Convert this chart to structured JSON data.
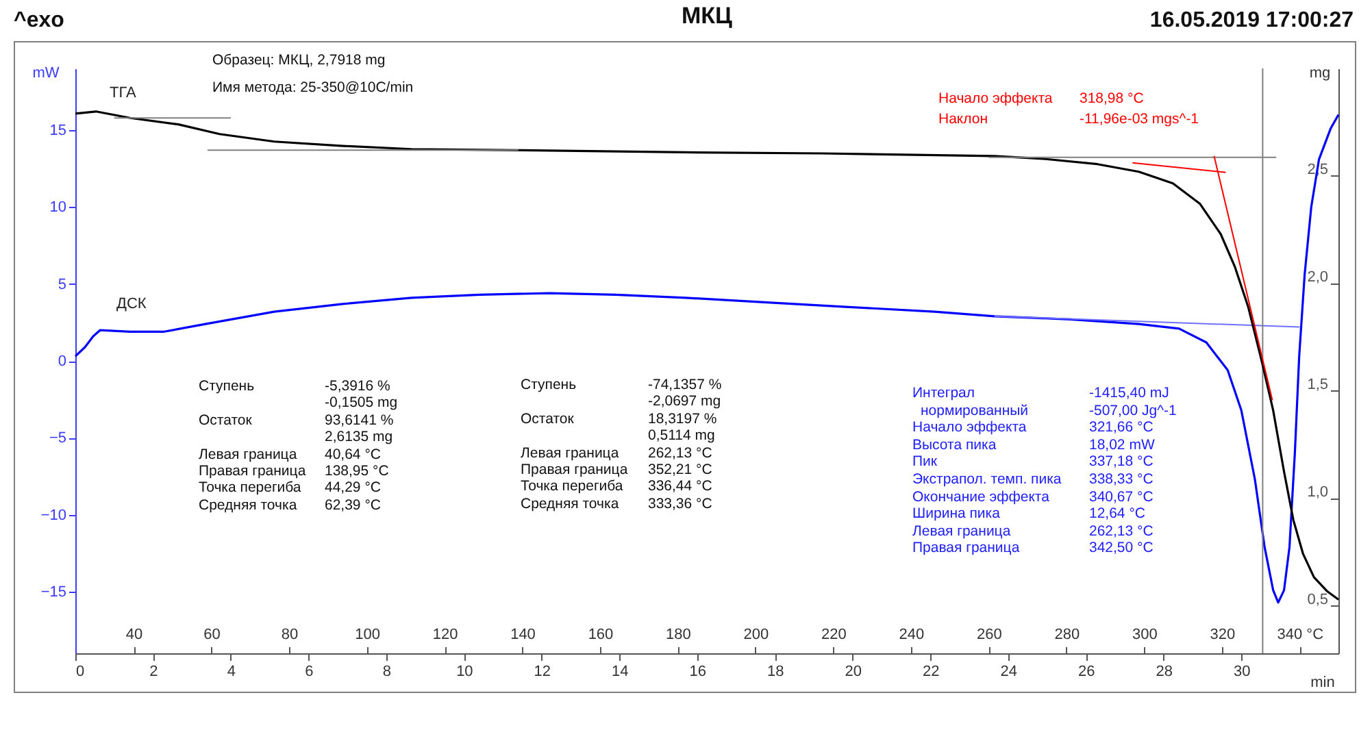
{
  "chart_data": {
    "type": "line",
    "title": "МКЦ",
    "xlabel": "min",
    "ylabel": "mW",
    "y2label": "mg",
    "xlim": [
      0,
      32.5
    ],
    "xticks": [
      0,
      2,
      4,
      6,
      8,
      10,
      12,
      14,
      16,
      18,
      20,
      22,
      24,
      26,
      28,
      30
    ],
    "x2lim": [
      25,
      350
    ],
    "x2ticks": [
      40,
      60,
      80,
      100,
      120,
      140,
      160,
      180,
      200,
      220,
      240,
      260,
      280,
      300,
      320,
      {
        "value": 340,
        "label": "340 °C"
      }
    ],
    "ylim": [
      -19,
      19
    ],
    "yticks": [
      -15,
      -10,
      -5,
      0,
      5,
      10,
      15
    ],
    "y2lim": [
      0.28,
      3.0
    ],
    "y2ticks": [
      {
        "value": 0.5,
        "label": "0,5"
      },
      {
        "value": 1.0,
        "label": "1,0"
      },
      {
        "value": 1.5,
        "label": "1,5"
      },
      {
        "value": 2.0,
        "label": "2,0"
      },
      {
        "value": 2.5,
        "label": "2,5"
      }
    ],
    "legend": false,
    "grid": false,
    "marker": "none",
    "line_style": "solid",
    "series": [
      {
        "name": "ТГА",
        "color": "#000000",
        "axis": "y2",
        "x": [
          0,
          0.53,
          1.41,
          2.65,
          3.71,
          5.12,
          6.88,
          8.65,
          11.4,
          15.7,
          19.2,
          23.65,
          24.9,
          26.3,
          27.36,
          28.24,
          28.94,
          29.47,
          29.83,
          30.18,
          30.53,
          30.82,
          31.1,
          31.34,
          31.59,
          31.87,
          32.2,
          32.5
        ],
        "values": [
          2.79,
          2.8,
          2.77,
          2.74,
          2.695,
          2.66,
          2.64,
          2.625,
          2.62,
          2.61,
          2.605,
          2.593,
          2.58,
          2.555,
          2.52,
          2.466,
          2.37,
          2.23,
          2.08,
          1.89,
          1.636,
          1.41,
          1.125,
          0.9,
          0.742,
          0.634,
          0.57,
          0.53
        ]
      },
      {
        "name": "ДСК",
        "color": "#0000ff",
        "x": [
          0,
          0.25,
          0.46,
          0.64,
          1.41,
          2.29,
          3.35,
          5.12,
          6.88,
          8.65,
          10.4,
          12.2,
          13.9,
          15.7,
          17.8,
          19.9,
          22.1,
          23.65,
          25.6,
          27.36,
          28.4,
          29.1,
          29.65,
          30.0,
          30.35,
          30.6,
          30.82,
          30.95,
          31.1,
          31.24,
          31.38,
          31.49,
          31.63,
          31.8,
          32.0,
          32.3,
          32.5
        ],
        "values": [
          0.3,
          0.9,
          1.6,
          2.0,
          1.9,
          1.9,
          2.4,
          3.2,
          3.7,
          4.1,
          4.3,
          4.4,
          4.3,
          4.1,
          3.8,
          3.5,
          3.2,
          2.9,
          2.7,
          2.4,
          2.1,
          1.2,
          -0.6,
          -3.2,
          -7.7,
          -12.1,
          -14.9,
          -15.7,
          -14.9,
          -12.1,
          -5.9,
          0.3,
          5.6,
          10.0,
          13.1,
          15.1,
          16.0
        ]
      },
      {
        "color": "#808080",
        "axis": "y2",
        "x": [
          1.0,
          4.0
        ],
        "values": [
          2.77,
          2.77
        ]
      },
      {
        "color": "#808080",
        "axis": "y2",
        "x": [
          3.4,
          11.4
        ],
        "values": [
          2.62,
          2.62
        ]
      },
      {
        "color": "#808080",
        "axis": "y2",
        "x": [
          23.5,
          30.9
        ],
        "values": [
          2.587,
          2.587
        ]
      },
      {
        "color": "#ff0000",
        "axis": "y2",
        "x": [
          27.2,
          29.6
        ],
        "values": [
          2.561,
          2.517
        ]
      },
      {
        "color": "#ff0000",
        "axis": "y2",
        "x": [
          29.3,
          30.8
        ],
        "values": [
          2.593,
          1.457
        ]
      },
      {
        "color": "#7070ff",
        "x": [
          23.65,
          31.5
        ],
        "values": [
          2.9,
          2.2
        ]
      }
    ],
    "ref_lines": [
      {
        "axis": "x",
        "value": 30.55,
        "color": "#808080"
      }
    ],
    "annotations": [
      "^exo",
      "16.05.2019 17:00:27",
      "Образец: МКЦ, 2,7918 mg",
      "Имя метода: 25-350@10C/min",
      "Начало эффекта",
      "318,98 °C",
      "Наклон",
      "-11,96e-03 mgs^-1",
      "Ступень",
      "Остаток",
      "Левая граница",
      "Правая граница",
      "Точка перегиба",
      "Средняя точка",
      "-5,3916 %",
      "-0,1505 mg",
      "93,6141 %",
      "2,6135 mg",
      "40,64 °C",
      "138,95 °C",
      "44,29 °C",
      "62,39 °C",
      "Ступень",
      "Остаток",
      "Левая граница",
      "Правая граница",
      "Точка перегиба",
      "Средняя точка",
      "-74,1357 %",
      "-2,0697 mg",
      "18,3197 %",
      "0,5114 mg",
      "262,13 °C",
      "352,21 °C",
      "336,44 °C",
      "333,36 °C",
      "Интеграл",
      "нормированный",
      "Начало эффекта",
      "Высота пика",
      "Пик",
      "Экстрапол. темп. пика",
      "Окончание эффекта",
      "Ширина пика",
      "Левая граница",
      "Правая граница",
      "-1415,40 mJ",
      "-507,00 Jg^-1",
      "321,66 °C",
      "18,02 mW",
      "337,18 °C",
      "338,33 °C",
      "340,67 °C",
      "12,64 °C",
      "262,13 °C",
      "342,50 °C"
    ]
  }
}
